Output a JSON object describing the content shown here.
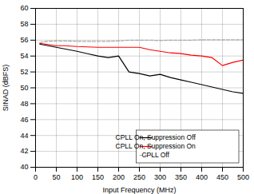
{
  "chart_data": {
    "type": "line",
    "xlabel": "Input Frequency (MHz)",
    "ylabel": "SINAD (dBFS)",
    "xlim": [
      0,
      500
    ],
    "ylim": [
      40,
      60
    ],
    "xticks": [
      0,
      50,
      100,
      150,
      200,
      250,
      300,
      350,
      400,
      450,
      500
    ],
    "yticks": [
      40,
      42,
      44,
      46,
      48,
      50,
      52,
      54,
      56,
      58,
      60
    ],
    "grid": true,
    "legend": "lower right",
    "series": [
      {
        "name": "CPLL On, Suppression Off",
        "color": "#000000",
        "line_style": "solid",
        "x": [
          10,
          50,
          70,
          100,
          125,
          150,
          175,
          200,
          225,
          250,
          275,
          300,
          325,
          350,
          375,
          400,
          425,
          450,
          475,
          500
        ],
        "values": [
          55.5,
          55.1,
          54.9,
          54.6,
          54.3,
          54.0,
          53.8,
          54.0,
          52.0,
          51.8,
          51.5,
          51.7,
          51.3,
          51.0,
          50.7,
          50.4,
          50.1,
          49.8,
          49.5,
          49.3
        ]
      },
      {
        "name": "CPLL On, Suppression On",
        "color": "#ff0000",
        "line_style": "solid",
        "x": [
          10,
          50,
          70,
          100,
          125,
          150,
          175,
          200,
          225,
          250,
          275,
          300,
          325,
          350,
          375,
          400,
          425,
          450,
          475,
          500
        ],
        "values": [
          55.6,
          55.3,
          55.3,
          55.2,
          55.15,
          55.1,
          55.1,
          55.1,
          55.1,
          55.1,
          54.8,
          54.6,
          54.4,
          54.3,
          54.1,
          54.0,
          53.8,
          52.8,
          53.2,
          53.5
        ]
      },
      {
        "name": "CPLL Off",
        "color": "#aaaaaa",
        "line_style": "dashed",
        "x": [
          10,
          30,
          50,
          70,
          100,
          125,
          150,
          175,
          200,
          225,
          250,
          275,
          300,
          325,
          350,
          375,
          400,
          425,
          450,
          475,
          500
        ],
        "values": [
          55.7,
          55.85,
          55.9,
          55.9,
          55.85,
          55.85,
          55.85,
          55.85,
          55.9,
          56.0,
          56.0,
          56.0,
          55.95,
          56.0,
          56.0,
          56.0,
          56.05,
          56.05,
          56.05,
          56.05,
          56.05
        ]
      }
    ]
  }
}
